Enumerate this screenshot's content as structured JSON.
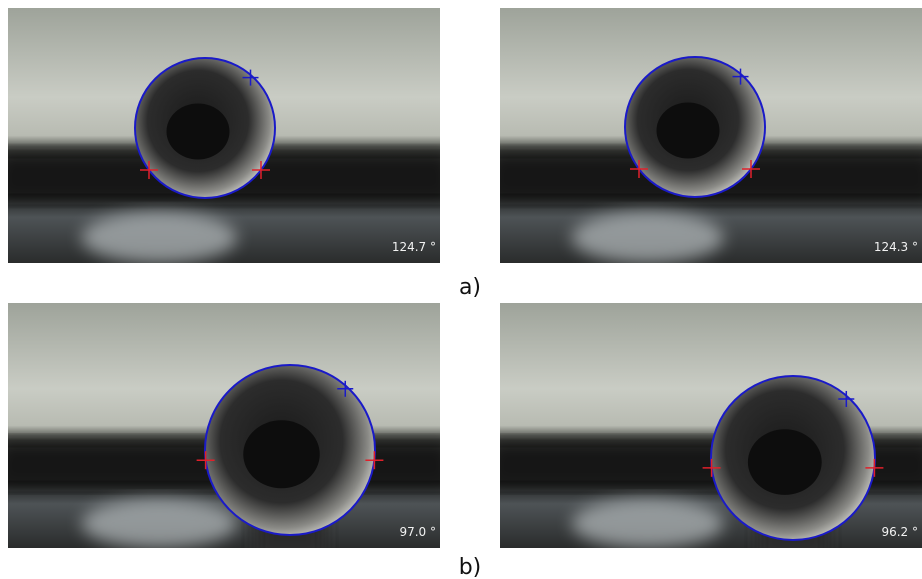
{
  "figure": {
    "rows": [
      {
        "label": "a)",
        "panels": [
          {
            "angle": "124.7 °"
          },
          {
            "angle": "124.3 °"
          }
        ]
      },
      {
        "label": "b)",
        "panels": [
          {
            "angle": "97.0 °"
          },
          {
            "angle": "96.2 °"
          }
        ]
      }
    ]
  }
}
